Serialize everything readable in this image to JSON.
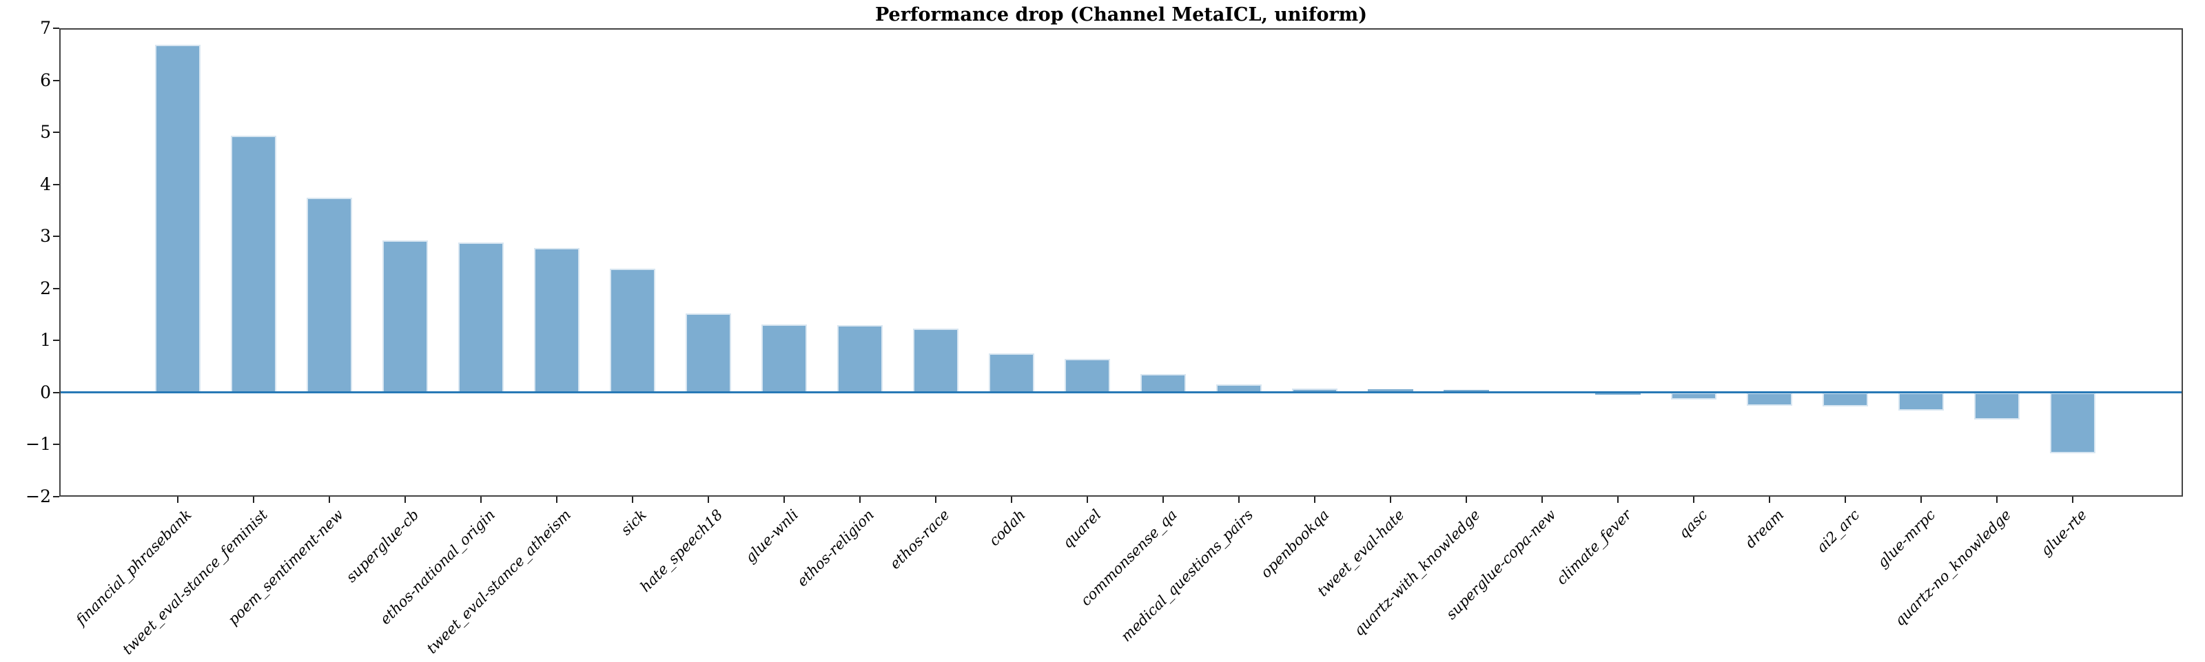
{
  "chart_data": {
    "type": "bar",
    "title": "Performance drop (Channel MetaICL, uniform)",
    "categories": [
      "financial_phrasebank",
      "tweet_eval-stance_feminist",
      "poem_sentiment-new",
      "superglue-cb",
      "ethos-national_origin",
      "tweet_eval-stance_atheism",
      "sick",
      "hate_speech18",
      "glue-wnli",
      "ethos-religion",
      "ethos-race",
      "codah",
      "quarel",
      "commonsense_qa",
      "medical_questions_pairs",
      "openbookqa",
      "tweet_eval-hate",
      "quartz-with_knowledge",
      "superglue-copa-new",
      "climate_fever",
      "qasc",
      "dream",
      "ai2_arc",
      "glue-mrpc",
      "quartz-no_knowledge",
      "glue-rte"
    ],
    "values": [
      6.68,
      4.93,
      3.74,
      2.93,
      2.88,
      2.78,
      2.38,
      1.52,
      1.31,
      1.3,
      1.23,
      0.75,
      0.65,
      0.35,
      0.16,
      0.08,
      0.06,
      0.05,
      0.01,
      -0.04,
      -0.14,
      -0.25,
      -0.27,
      -0.34,
      -0.52,
      -1.16
    ],
    "xlabel": "",
    "ylabel": "",
    "ylim": [
      -2,
      7
    ],
    "yticks": [
      7,
      6,
      5,
      4,
      3,
      2,
      1,
      0,
      -1,
      -2
    ],
    "x_tick_rotation": 45,
    "grid": false,
    "legend_position": "none",
    "bar_color": "#7dadd1",
    "bar_edge_color": "#d8e6f1",
    "zero_line_color": "#2879b6",
    "spine_color": "#444444",
    "tick_color": "#222222",
    "text_color": "#000000",
    "background_color": "#ffffff"
  }
}
